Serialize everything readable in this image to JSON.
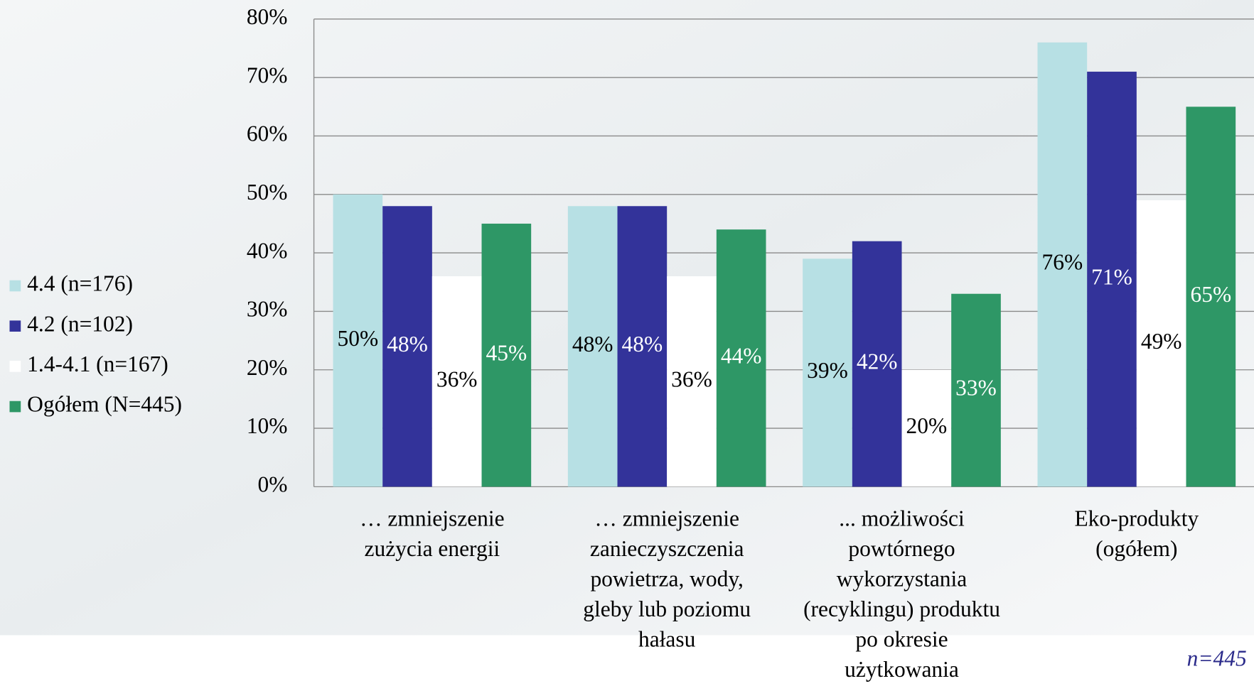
{
  "chart_data": {
    "type": "bar",
    "categories": [
      "… zmniejszenie\nzużycia energii",
      "… zmniejszenie\nzanieczyszczenia\npowietrza, wody,\ngleby lub poziomu\nhałasu",
      "... możliwości\npowtórnego\nwykorzystania\n(recyklingu) produktu\npo okresie\nużytkowania",
      "Eko-produkty\n(ogółem)"
    ],
    "series": [
      {
        "name": "4.4 (n=176)",
        "color": "#b7e0e4",
        "label_color": "#000000",
        "values": [
          50,
          48,
          39,
          76
        ],
        "value_labels": [
          "50%",
          "48%",
          "39%",
          "76%"
        ]
      },
      {
        "name": "4.2 (n=102)",
        "color": "#33339a",
        "label_color": "#ffffff",
        "values": [
          48,
          48,
          42,
          71
        ],
        "value_labels": [
          "48%",
          "48%",
          "42%",
          "71%"
        ]
      },
      {
        "name": "1.4-4.1 (n=167)",
        "color": "#ffffff",
        "label_color": "#000000",
        "values": [
          36,
          36,
          20,
          49
        ],
        "value_labels": [
          "36%",
          "36%",
          "20%",
          "49%"
        ]
      },
      {
        "name": "Ogółem (N=445)",
        "color": "#2e9766",
        "label_color": "#ffffff",
        "values": [
          45,
          44,
          33,
          65
        ],
        "value_labels": [
          "45%",
          "44%",
          "33%",
          "65%"
        ]
      }
    ],
    "ylim": [
      0,
      80
    ],
    "yticks": [
      {
        "value": 0,
        "label": "0%"
      },
      {
        "value": 10,
        "label": "10%"
      },
      {
        "value": 20,
        "label": "20%"
      },
      {
        "value": 30,
        "label": "30%"
      },
      {
        "value": 40,
        "label": "40%"
      },
      {
        "value": 50,
        "label": "50%"
      },
      {
        "value": 60,
        "label": "60%"
      },
      {
        "value": 70,
        "label": "70%"
      },
      {
        "value": 80,
        "label": "80%"
      }
    ],
    "grid": true,
    "legend": "left",
    "note": "n=445"
  }
}
